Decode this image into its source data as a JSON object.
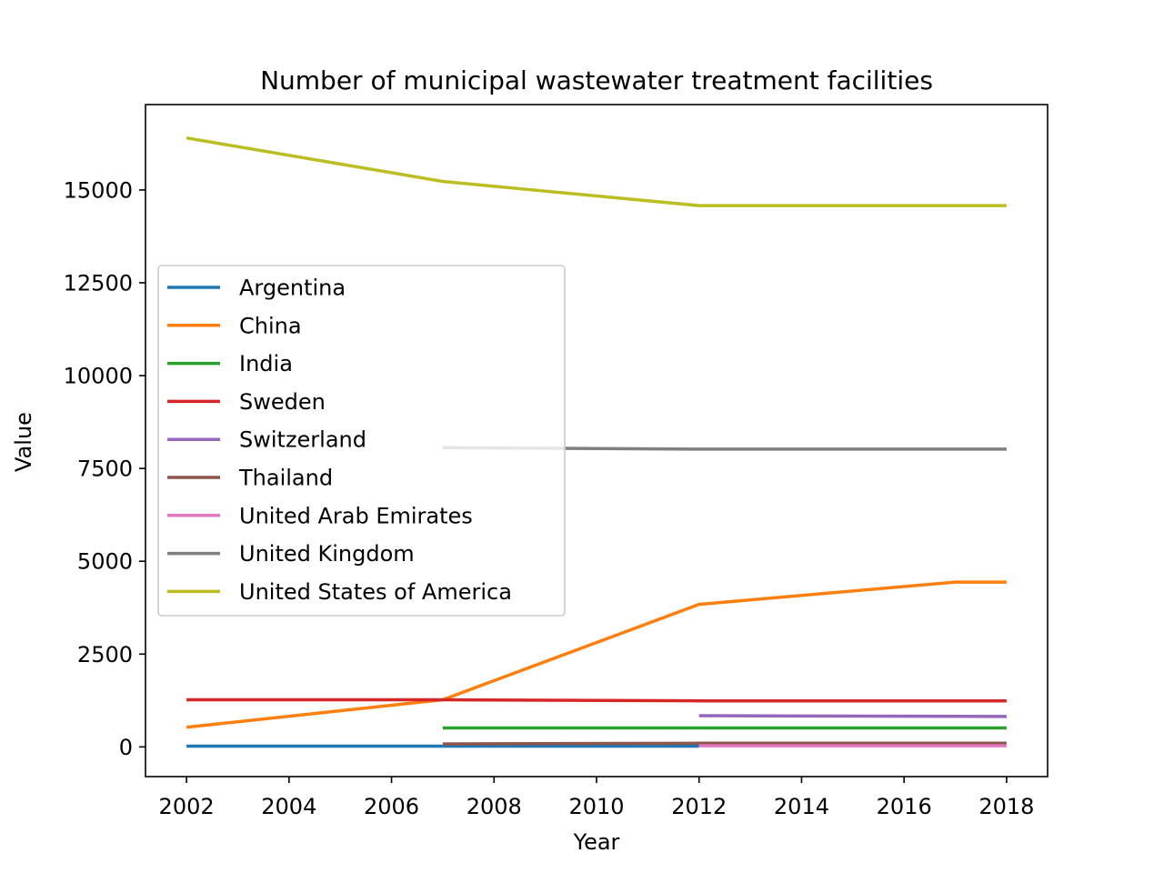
{
  "chart_data": {
    "type": "line",
    "title": "Number of municipal wastewater treatment facilities",
    "xlabel": "Year",
    "ylabel": "Value",
    "xlim": [
      2001.2,
      2018.8
    ],
    "ylim": [
      -800,
      17300
    ],
    "x_ticks": [
      2002,
      2004,
      2006,
      2008,
      2010,
      2012,
      2014,
      2016,
      2018
    ],
    "y_ticks": [
      0,
      2500,
      5000,
      7500,
      10000,
      12500,
      15000
    ],
    "grid": false,
    "legend_position": "center-left",
    "series": [
      {
        "name": "Argentina",
        "color": "#1f77b4",
        "points": [
          [
            2002,
            20
          ],
          [
            2007,
            20
          ],
          [
            2012,
            20
          ]
        ]
      },
      {
        "name": "China",
        "color": "#ff7f0e",
        "points": [
          [
            2002,
            530
          ],
          [
            2007,
            1270
          ],
          [
            2012,
            3840
          ],
          [
            2017,
            4440
          ],
          [
            2018,
            4440
          ]
        ]
      },
      {
        "name": "India",
        "color": "#2ca02c",
        "points": [
          [
            2007,
            510
          ],
          [
            2012,
            510
          ],
          [
            2018,
            510
          ]
        ]
      },
      {
        "name": "Sweden",
        "color": "#d62728",
        "points": [
          [
            2002,
            1270
          ],
          [
            2007,
            1270
          ],
          [
            2012,
            1240
          ],
          [
            2018,
            1240
          ]
        ]
      },
      {
        "name": "Switzerland",
        "color": "#9467bd",
        "points": [
          [
            2012,
            840
          ],
          [
            2018,
            820
          ]
        ]
      },
      {
        "name": "Thailand",
        "color": "#8c564b",
        "points": [
          [
            2007,
            80
          ],
          [
            2012,
            100
          ],
          [
            2018,
            100
          ]
        ]
      },
      {
        "name": "United Arab Emirates",
        "color": "#e377c2",
        "points": [
          [
            2012,
            30
          ],
          [
            2018,
            30
          ]
        ]
      },
      {
        "name": "United Kingdom",
        "color": "#7f7f7f",
        "points": [
          [
            2007,
            8060
          ],
          [
            2012,
            8020
          ],
          [
            2018,
            8020
          ]
        ]
      },
      {
        "name": "United States of America",
        "color": "#bcbd22",
        "points": [
          [
            2002,
            16400
          ],
          [
            2007,
            15230
          ],
          [
            2012,
            14580
          ],
          [
            2018,
            14580
          ]
        ]
      }
    ]
  }
}
